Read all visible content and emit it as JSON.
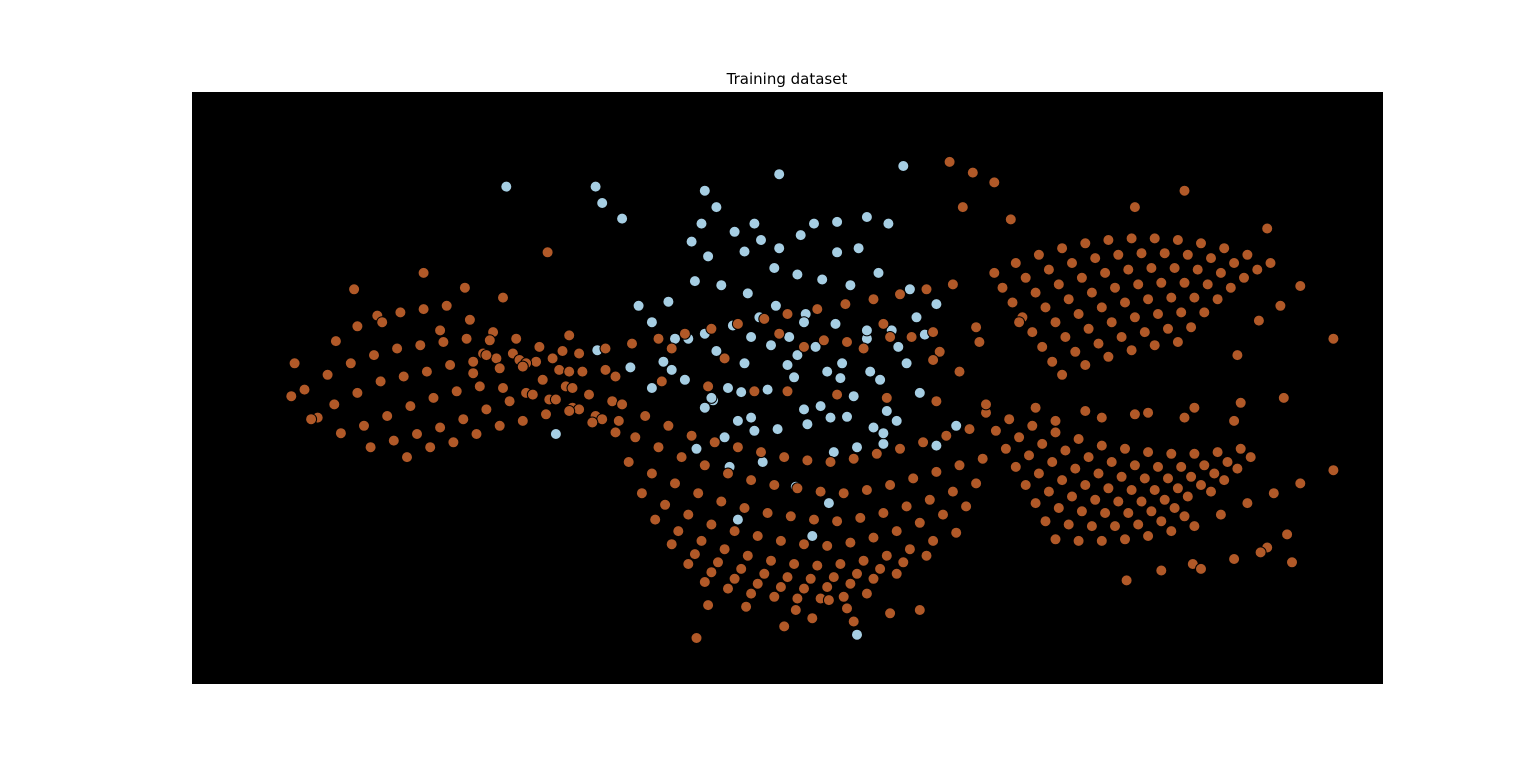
{
  "chart_data": {
    "type": "scatter",
    "title": "Training dataset",
    "xlabel": "",
    "ylabel": "",
    "xlim": [
      -3.6,
      3.6
    ],
    "ylim": [
      -3.6,
      3.6
    ],
    "grid": false,
    "axes_visible": false,
    "background_color": "#000000",
    "marker_edge_color": "#000000",
    "series": [
      {
        "color": "#a6cee3",
        "x": [
          -1.7,
          -1.16,
          -1.12,
          -1.0,
          -0.5,
          -0.43,
          -0.52,
          -0.58,
          -0.48,
          -0.32,
          -0.2,
          0.08,
          0.16,
          0.3,
          0.48,
          0.61,
          0.43,
          0.3,
          -0.05,
          -0.16,
          -0.26,
          -0.08,
          0.06,
          0.21,
          0.38,
          0.55,
          0.74,
          0.9,
          0.78,
          0.63,
          0.48,
          0.29,
          0.11,
          -0.07,
          -0.24,
          -0.4,
          -0.56,
          -0.72,
          -0.9,
          -0.82,
          -0.68,
          -0.5,
          -0.33,
          -0.17,
          0.01,
          0.17,
          0.33,
          0.5,
          0.67,
          0.83,
          0.72,
          0.56,
          0.4,
          0.24,
          0.06,
          -0.1,
          -0.26,
          -0.43,
          -0.6,
          -0.75,
          -0.62,
          -0.45,
          -0.28,
          -0.12,
          0.04,
          0.2,
          0.36,
          0.52,
          0.66,
          0.58,
          0.42,
          0.26,
          0.1,
          -0.06,
          -0.22,
          -0.38,
          -0.55,
          -0.35,
          -0.15,
          0.05,
          0.25,
          -0.82,
          -0.95,
          -1.15,
          -1.4,
          -0.3,
          0.15,
          0.42,
          0.7,
          1.02,
          0.9,
          -0.05,
          -0.3,
          -0.5,
          0.32,
          0.58,
          0.8,
          -0.22,
          0.1,
          0.48,
          0.6,
          0.0,
          -0.7,
          -0.46,
          -0.2,
          0.28,
          0.12,
          -0.36
        ],
        "y": [
          2.45,
          2.45,
          2.25,
          2.06,
          2.4,
          2.2,
          2.0,
          1.78,
          1.6,
          1.9,
          2.0,
          1.86,
          2.0,
          2.02,
          2.08,
          2.0,
          1.7,
          1.65,
          1.7,
          1.8,
          1.66,
          1.46,
          1.38,
          1.32,
          1.25,
          1.4,
          1.2,
          1.02,
          0.86,
          0.7,
          0.6,
          0.78,
          0.9,
          1.0,
          1.15,
          1.25,
          1.3,
          1.05,
          1.0,
          0.8,
          0.6,
          0.66,
          0.76,
          0.86,
          0.62,
          0.5,
          0.3,
          0.2,
          0.5,
          0.65,
          0.3,
          0.1,
          -0.1,
          0.2,
          0.4,
          0.52,
          0.3,
          0.45,
          0.6,
          0.32,
          0.1,
          -0.15,
          -0.05,
          -0.02,
          0.13,
          -0.22,
          -0.35,
          -0.48,
          -0.4,
          -0.68,
          -0.72,
          -0.36,
          -0.26,
          -0.5,
          -0.36,
          -0.6,
          -0.74,
          -0.96,
          -0.9,
          -1.2,
          -1.4,
          0.0,
          0.25,
          0.46,
          -0.56,
          -1.6,
          -1.8,
          -3.0,
          2.7,
          -0.46,
          -0.7,
          2.6,
          -0.4,
          -0.24,
          0.12,
          -0.55,
          -0.06,
          0.62,
          0.8,
          0.7,
          -0.28,
          0.28,
          0.22,
          -0.12,
          -0.52,
          -0.78,
          -0.44,
          0.0
        ]
      },
      {
        "color": "#b15928",
        "x": [
          -3.0,
          -2.98,
          -2.84,
          -2.73,
          -2.6,
          -2.48,
          -2.34,
          -2.2,
          -2.06,
          -1.92,
          -1.78,
          -1.64,
          -1.5,
          -1.36,
          -2.92,
          -2.78,
          -2.64,
          -2.5,
          -2.36,
          -2.22,
          -2.08,
          -1.94,
          -1.8,
          -1.66,
          -1.52,
          -1.38,
          -1.24,
          -1.1,
          -2.88,
          -2.74,
          -2.6,
          -2.46,
          -2.32,
          -2.18,
          -2.04,
          -1.9,
          -1.76,
          -1.62,
          -1.48,
          -1.34,
          -1.2,
          -1.06,
          -2.7,
          -2.56,
          -2.42,
          -2.28,
          -2.14,
          -2.0,
          -1.86,
          -1.72,
          -1.58,
          -1.44,
          -1.3,
          -1.16,
          -1.02,
          -2.52,
          -2.38,
          -2.24,
          -2.1,
          -1.96,
          -1.82,
          -1.68,
          -1.54,
          -1.4,
          -1.26,
          -1.12,
          -2.3,
          -2.16,
          -2.02,
          -1.88,
          -1.74,
          -1.6,
          -1.46,
          -1.32,
          -1.18,
          -1.04,
          -2.62,
          -2.2,
          -1.72,
          -1.45,
          -1.95,
          -2.45,
          -2.1,
          -1.84,
          -1.3,
          -1.0,
          -0.86,
          -0.72,
          -0.58,
          -0.44,
          -0.3,
          -0.16,
          -0.02,
          0.12,
          0.26,
          0.4,
          0.54,
          0.68,
          0.82,
          0.96,
          1.1,
          -0.92,
          -0.78,
          -0.64,
          -0.5,
          -0.36,
          -0.22,
          -0.08,
          0.06,
          0.2,
          0.34,
          0.48,
          0.62,
          0.76,
          0.9,
          1.04,
          1.18,
          -0.96,
          -0.82,
          -0.68,
          -0.54,
          -0.4,
          -0.26,
          -0.12,
          0.02,
          0.16,
          0.3,
          0.44,
          0.58,
          0.72,
          0.86,
          1.0,
          1.14,
          -0.88,
          -0.74,
          -0.6,
          -0.46,
          -0.32,
          -0.18,
          -0.04,
          0.1,
          0.24,
          0.38,
          0.52,
          0.66,
          0.8,
          0.94,
          1.08,
          -0.8,
          -0.66,
          -0.52,
          -0.38,
          -0.24,
          -0.1,
          0.04,
          0.18,
          0.32,
          0.46,
          0.6,
          0.74,
          0.88,
          1.02,
          -0.7,
          -0.56,
          -0.42,
          -0.28,
          -0.14,
          0.0,
          0.14,
          0.28,
          0.42,
          0.56,
          0.7,
          0.84,
          -0.6,
          -0.46,
          -0.32,
          -0.18,
          -0.04,
          0.1,
          0.24,
          0.38,
          0.52,
          0.66,
          -0.5,
          -0.36,
          -0.22,
          -0.08,
          0.06,
          0.2,
          0.34,
          0.48,
          -0.48,
          -0.25,
          0.05,
          0.36,
          0.62,
          0.15,
          -0.02,
          0.8,
          -0.55,
          0.25,
          0.4,
          1.2,
          1.34,
          1.48,
          1.62,
          1.76,
          1.9,
          2.04,
          2.18,
          2.32,
          2.46,
          2.6,
          2.74,
          1.26,
          1.4,
          1.54,
          1.68,
          1.82,
          1.96,
          2.1,
          2.24,
          2.38,
          2.52,
          2.66,
          2.8,
          1.32,
          1.46,
          1.6,
          1.74,
          1.88,
          2.02,
          2.16,
          2.3,
          2.44,
          2.58,
          2.72,
          1.38,
          1.52,
          1.66,
          1.8,
          1.94,
          2.08,
          2.22,
          2.36,
          2.5,
          2.64,
          1.44,
          1.58,
          1.72,
          1.86,
          2.0,
          2.14,
          2.28,
          2.42,
          2.56,
          1.5,
          1.64,
          1.78,
          1.92,
          2.06,
          2.2,
          2.34,
          1.56,
          1.7,
          1.84,
          1.98,
          2.12,
          2.26,
          2.4,
          1.62,
          1.76,
          1.9,
          2.04,
          2.18,
          2.32,
          2.46,
          2.62,
          2.78,
          2.94,
          3.1,
          3.3,
          3.02,
          2.9,
          2.86,
          3.05,
          2.45,
          2.26,
          2.05,
          2.5,
          2.7,
          1.25,
          1.38,
          1.52,
          1.66,
          1.8,
          1.94,
          2.08,
          2.22,
          2.36,
          2.5,
          2.64,
          2.78,
          2.92,
          1.3,
          1.44,
          1.58,
          1.72,
          1.86,
          2.0,
          2.14,
          2.28,
          2.42,
          2.56,
          2.7,
          2.84,
          1.36,
          1.5,
          1.64,
          1.78,
          1.92,
          2.06,
          2.2,
          2.34,
          2.48,
          2.62,
          2.76,
          1.42,
          1.56,
          1.7,
          1.84,
          1.98,
          2.12,
          2.26,
          2.4,
          2.54,
          2.68,
          1.48,
          1.62,
          1.76,
          1.9,
          2.04,
          2.18,
          2.32,
          2.46,
          2.6,
          1.54,
          1.68,
          1.82,
          1.96,
          2.1,
          2.24,
          2.38,
          2.52,
          1.6,
          1.74,
          1.88,
          2.02,
          2.16,
          2.3,
          2.44,
          1.66,
          1.8,
          1.94,
          2.08,
          2.22,
          2.36,
          3.1,
          2.98,
          2.85,
          3.3,
          2.72,
          2.1,
          2.4,
          2.9,
          1.12,
          1.25,
          0.98,
          1.06,
          1.35,
          0.0,
          0.18,
          0.35,
          0.52,
          0.68,
          0.84,
          1.0,
          -0.14,
          -0.3,
          -0.46,
          -0.62,
          -0.78,
          -0.94,
          -1.1,
          -1.26,
          -1.42,
          -1.58,
          -1.74,
          -1.9,
          1.16,
          0.92,
          0.75,
          0.58,
          -0.05,
          0.22,
          0.46,
          0.88,
          1.04,
          -0.38,
          -0.7,
          -1.32,
          -1.82,
          0.0,
          0.3,
          0.6,
          0.9,
          1.2,
          1.5,
          1.8,
          2.1,
          2.4,
          2.7,
          -0.2,
          -0.48,
          -0.76,
          -1.04,
          -1.32,
          -1.6,
          1.62,
          1.9,
          2.18,
          2.46,
          2.74,
          3.0,
          0.1,
          0.36,
          0.62,
          0.88,
          1.14,
          1.4
        ],
        "y": [
          -0.1,
          0.3,
          -0.36,
          0.57,
          0.75,
          0.88,
          0.92,
          0.96,
          1.0,
          0.83,
          0.68,
          0.6,
          0.5,
          0.45,
          -0.02,
          0.16,
          0.3,
          0.4,
          0.48,
          0.52,
          0.56,
          0.6,
          0.58,
          0.42,
          0.32,
          0.22,
          0.2,
          0.22,
          -0.38,
          -0.2,
          -0.06,
          0.08,
          0.14,
          0.2,
          0.28,
          0.32,
          0.36,
          0.34,
          0.1,
          0.02,
          -0.08,
          -0.16,
          -0.55,
          -0.46,
          -0.34,
          -0.22,
          -0.12,
          -0.04,
          0.02,
          0.0,
          -0.06,
          -0.14,
          -0.24,
          -0.34,
          -0.4,
          -0.72,
          -0.64,
          -0.56,
          -0.48,
          -0.38,
          -0.26,
          -0.16,
          -0.08,
          -0.14,
          -0.26,
          -0.38,
          -0.84,
          -0.72,
          -0.66,
          -0.56,
          -0.46,
          -0.4,
          -0.32,
          -0.28,
          -0.42,
          -0.54,
          1.2,
          1.4,
          1.1,
          1.65,
          1.22,
          0.8,
          0.7,
          0.42,
          0.0,
          -0.2,
          -0.34,
          -0.46,
          -0.58,
          -0.66,
          -0.72,
          -0.78,
          -0.84,
          -0.88,
          -0.9,
          -0.86,
          -0.8,
          -0.74,
          -0.66,
          -0.58,
          -0.5,
          -0.6,
          -0.72,
          -0.84,
          -0.94,
          -1.04,
          -1.12,
          -1.18,
          -1.22,
          -1.26,
          -1.28,
          -1.24,
          -1.18,
          -1.1,
          -1.02,
          -0.94,
          -0.86,
          -0.9,
          -1.04,
          -1.16,
          -1.28,
          -1.38,
          -1.46,
          -1.52,
          -1.56,
          -1.6,
          -1.62,
          -1.58,
          -1.52,
          -1.44,
          -1.36,
          -1.26,
          -1.16,
          -1.28,
          -1.42,
          -1.54,
          -1.66,
          -1.74,
          -1.8,
          -1.86,
          -1.9,
          -1.92,
          -1.88,
          -1.82,
          -1.74,
          -1.64,
          -1.54,
          -1.44,
          -1.6,
          -1.74,
          -1.86,
          -1.96,
          -2.04,
          -2.1,
          -2.14,
          -2.16,
          -2.14,
          -2.1,
          -2.04,
          -1.96,
          -1.86,
          -1.76,
          -1.9,
          -2.02,
          -2.12,
          -2.2,
          -2.26,
          -2.3,
          -2.32,
          -2.3,
          -2.26,
          -2.2,
          -2.12,
          -2.04,
          -2.14,
          -2.24,
          -2.32,
          -2.38,
          -2.42,
          -2.44,
          -2.42,
          -2.38,
          -2.32,
          -2.26,
          -2.36,
          -2.44,
          -2.5,
          -2.54,
          -2.56,
          -2.56,
          -2.54,
          -2.5,
          -2.64,
          -2.66,
          -2.7,
          -2.68,
          -2.74,
          -2.8,
          -2.9,
          -2.7,
          -3.04,
          -2.58,
          -2.84,
          -0.3,
          -0.38,
          -0.46,
          -0.54,
          -0.62,
          -0.7,
          -0.74,
          -0.78,
          -0.8,
          -0.8,
          -0.78,
          -0.74,
          -0.52,
          -0.6,
          -0.68,
          -0.76,
          -0.84,
          -0.9,
          -0.94,
          -0.96,
          -0.96,
          -0.94,
          -0.9,
          -0.84,
          -0.74,
          -0.82,
          -0.9,
          -0.98,
          -1.04,
          -1.08,
          -1.1,
          -1.1,
          -1.08,
          -1.04,
          -0.98,
          -0.96,
          -1.04,
          -1.12,
          -1.18,
          -1.22,
          -1.24,
          -1.24,
          -1.22,
          -1.18,
          -1.12,
          -1.18,
          -1.26,
          -1.32,
          -1.36,
          -1.38,
          -1.38,
          -1.36,
          -1.32,
          -1.26,
          -1.4,
          -1.46,
          -1.5,
          -1.52,
          -1.52,
          -1.5,
          -1.46,
          -1.62,
          -1.66,
          -1.68,
          -1.68,
          -1.66,
          -1.62,
          -1.56,
          -1.84,
          -1.86,
          -1.86,
          -1.84,
          -1.8,
          -1.74,
          -1.68,
          -1.54,
          -1.4,
          -1.28,
          -1.16,
          -1.0,
          -1.78,
          -1.94,
          -2.0,
          -2.12,
          -2.14,
          -2.22,
          -2.34,
          -2.2,
          -2.08,
          1.4,
          1.52,
          1.62,
          1.7,
          1.76,
          1.8,
          1.82,
          1.82,
          1.8,
          1.76,
          1.7,
          1.62,
          1.52,
          1.22,
          1.34,
          1.44,
          1.52,
          1.58,
          1.62,
          1.64,
          1.64,
          1.62,
          1.58,
          1.52,
          1.44,
          1.04,
          1.16,
          1.26,
          1.34,
          1.4,
          1.44,
          1.46,
          1.46,
          1.44,
          1.4,
          1.34,
          0.86,
          0.98,
          1.08,
          1.16,
          1.22,
          1.26,
          1.28,
          1.28,
          1.26,
          1.22,
          0.68,
          0.8,
          0.9,
          0.98,
          1.04,
          1.08,
          1.1,
          1.1,
          1.08,
          0.5,
          0.62,
          0.72,
          0.8,
          0.86,
          0.9,
          0.92,
          0.92,
          0.32,
          0.44,
          0.54,
          0.62,
          0.68,
          0.72,
          0.74,
          0.16,
          0.28,
          0.38,
          0.46,
          0.52,
          0.56,
          1.24,
          1.0,
          0.82,
          0.6,
          0.4,
          2.2,
          2.4,
          1.94,
          2.62,
          2.5,
          2.75,
          2.2,
          2.05,
          0.9,
          0.96,
          1.02,
          1.08,
          1.14,
          1.2,
          1.26,
          0.84,
          0.78,
          0.72,
          0.66,
          0.6,
          0.54,
          0.48,
          0.42,
          0.36,
          0.3,
          0.24,
          0.18,
          0.56,
          0.44,
          0.62,
          0.78,
          0.66,
          0.58,
          0.48,
          0.34,
          0.2,
          0.36,
          0.48,
          0.64,
          0.4,
          -0.04,
          -0.08,
          -0.12,
          -0.16,
          -0.2,
          -0.24,
          -0.28,
          -0.32,
          -0.36,
          -0.4,
          -0.04,
          0.02,
          0.08,
          0.14,
          0.2,
          0.26,
          -0.4,
          -0.36,
          -0.3,
          -0.24,
          -0.18,
          -0.12,
          0.5,
          0.56,
          0.62,
          0.68,
          0.74,
          0.8
        ]
      }
    ]
  }
}
